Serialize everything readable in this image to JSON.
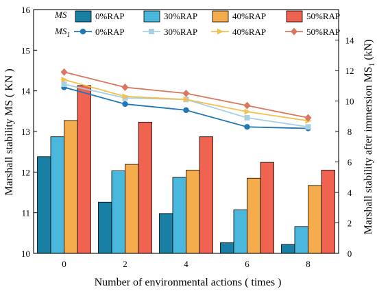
{
  "chart_data": {
    "type": "bar",
    "x": [
      0,
      2,
      4,
      6,
      8
    ],
    "xlabel": "Number of environmental actions ( times )",
    "ylabel_left": "Marshall stability MS ( KN )",
    "ylabel_right_main": "Marshall stability after immersion MS",
    "ylabel_right_sub": "1",
    "ylabel_right_unit": " (kN)",
    "ylim_left": [
      10,
      16
    ],
    "yticks_left": [
      "10",
      "11",
      "12",
      "13",
      "14",
      "15",
      "16"
    ],
    "ylim_right": [
      0,
      16
    ],
    "yticks_right": [
      "0",
      "2",
      "4",
      "6",
      "8",
      "10",
      "12",
      "14"
    ],
    "xticks": [
      "0",
      "2",
      "4",
      "6",
      "8"
    ],
    "legend_title_bar": "MS",
    "legend_title_line_main": "MS",
    "legend_title_line_sub": "1",
    "bar_series": [
      {
        "name": "0%RAP",
        "color": "#1a7fa5",
        "values": [
          12.38,
          11.26,
          10.98,
          10.26,
          10.22
        ]
      },
      {
        "name": "30%RAP",
        "color": "#4ab8dc",
        "values": [
          12.87,
          12.03,
          11.87,
          11.07,
          10.66
        ]
      },
      {
        "name": "40%RAP",
        "color": "#f5ac4c",
        "values": [
          13.27,
          12.19,
          12.05,
          11.85,
          11.67
        ]
      },
      {
        "name": "50%RAP",
        "color": "#ef6350",
        "values": [
          14.13,
          13.23,
          12.87,
          12.24,
          12.05
        ]
      }
    ],
    "line_series": [
      {
        "name": "0%RAP",
        "color": "#2176b4",
        "marker": "circle",
        "values": [
          10.9,
          9.8,
          9.4,
          8.3,
          8.2
        ]
      },
      {
        "name": "30%RAP",
        "color": "#a8cfe4",
        "marker": "square",
        "values": [
          11.1,
          10.2,
          10.1,
          8.9,
          8.3
        ]
      },
      {
        "name": "40%RAP",
        "color": "#f2c04e",
        "marker": "triangle-right",
        "values": [
          11.4,
          10.3,
          10.1,
          9.3,
          8.7
        ]
      },
      {
        "name": "50%RAP",
        "color": "#d9775f",
        "marker": "diamond",
        "values": [
          11.9,
          10.9,
          10.5,
          9.7,
          8.9
        ]
      }
    ],
    "grid": false,
    "legend_position": "top-left"
  }
}
